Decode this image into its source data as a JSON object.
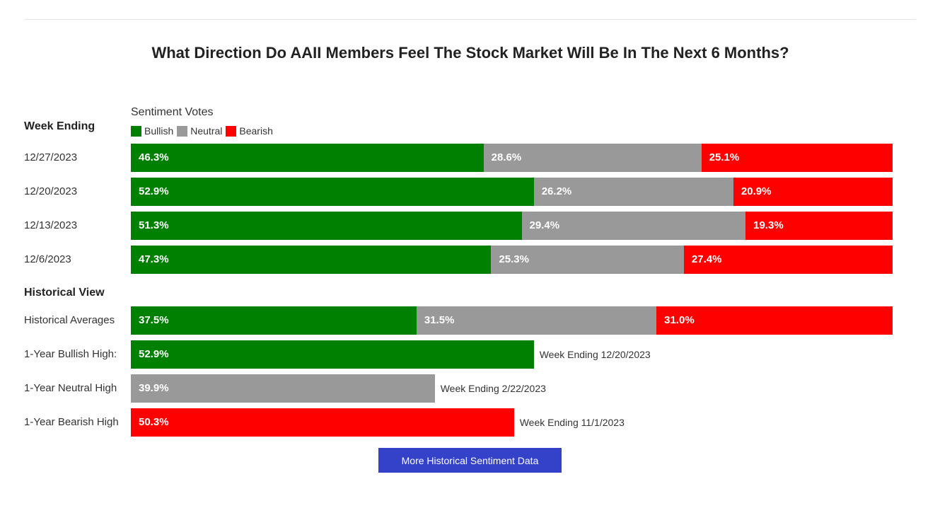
{
  "title": "What Direction Do AAII Members Feel The Stock Market Will Be In The Next 6 Months?",
  "sentiment_votes_label": "Sentiment Votes",
  "week_ending_label": "Week Ending",
  "historical_view_label": "Historical View",
  "legend": [
    {
      "name": "Bullish",
      "color": "#008000"
    },
    {
      "name": "Neutral",
      "color": "#999999"
    },
    {
      "name": "Bearish",
      "color": "#ff0000"
    }
  ],
  "button_label": "More Historical Sentiment Data",
  "chart_data": {
    "type": "bar",
    "orientation": "horizontal",
    "stacked": true,
    "title": "What Direction Do AAII Members Feel The Stock Market Will Be In The Next 6 Months?",
    "legend_position": "top-left",
    "grid": false,
    "weekly": [
      {
        "label": "12/27/2023",
        "bullish": 46.3,
        "neutral": 28.6,
        "bearish": 25.1,
        "bullish_text": "46.3%",
        "neutral_text": "28.6%",
        "bearish_text": "25.1%"
      },
      {
        "label": "12/20/2023",
        "bullish": 52.9,
        "neutral": 26.2,
        "bearish": 20.9,
        "bullish_text": "52.9%",
        "neutral_text": "26.2%",
        "bearish_text": "20.9%"
      },
      {
        "label": "12/13/2023",
        "bullish": 51.3,
        "neutral": 29.4,
        "bearish": 19.3,
        "bullish_text": "51.3%",
        "neutral_text": "29.4%",
        "bearish_text": "19.3%"
      },
      {
        "label": "12/6/2023",
        "bullish": 47.3,
        "neutral": 25.3,
        "bearish": 27.4,
        "bullish_text": "47.3%",
        "neutral_text": "25.3%",
        "bearish_text": "27.4%"
      }
    ],
    "historical_averages": {
      "label": "Historical Averages",
      "bullish": 37.5,
      "neutral": 31.5,
      "bearish": 31.0,
      "bullish_text": "37.5%",
      "neutral_text": "31.5%",
      "bearish_text": "31.0%"
    },
    "highs": [
      {
        "label": "1-Year Bullish High:",
        "value": 52.9,
        "value_text": "52.9%",
        "color": "#008000",
        "note": "Week Ending 12/20/2023"
      },
      {
        "label": "1-Year Neutral High",
        "value": 39.9,
        "value_text": "39.9%",
        "color": "#999999",
        "note": "Week Ending 2/22/2023"
      },
      {
        "label": "1-Year Bearish High",
        "value": 50.3,
        "value_text": "50.3%",
        "color": "#ff0000",
        "note": "Week Ending 11/1/2023"
      }
    ]
  }
}
